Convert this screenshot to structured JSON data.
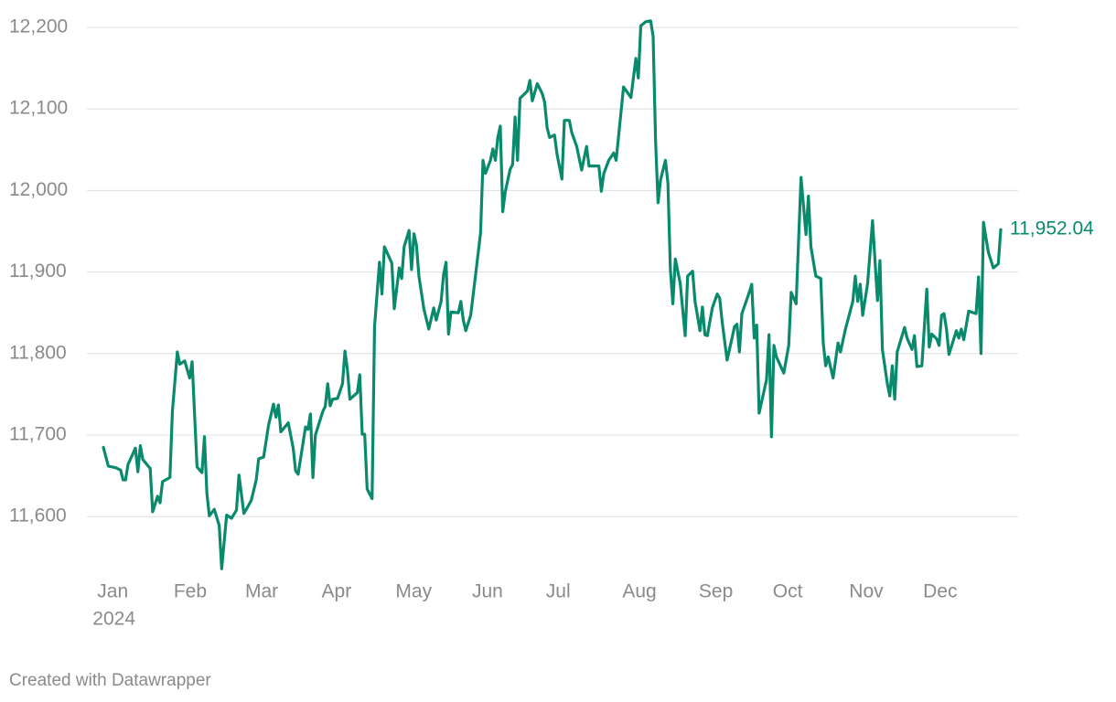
{
  "chart_data": {
    "type": "line",
    "x_year_label": "2024",
    "footer": "Created with Datawrapper",
    "last_value_label": "11,952.04",
    "xlim": [
      1,
      366
    ],
    "xticks": [
      {
        "value": 1,
        "label": "Jan"
      },
      {
        "value": 32,
        "label": "Feb"
      },
      {
        "value": 61,
        "label": "Mar"
      },
      {
        "value": 92,
        "label": "Apr"
      },
      {
        "value": 122,
        "label": "May"
      },
      {
        "value": 153,
        "label": "Jun"
      },
      {
        "value": 183,
        "label": "Jul"
      },
      {
        "value": 214,
        "label": "Aug"
      },
      {
        "value": 245,
        "label": "Sep"
      },
      {
        "value": 275,
        "label": "Oct"
      },
      {
        "value": 306,
        "label": "Nov"
      },
      {
        "value": 336,
        "label": "Dec"
      }
    ],
    "ylim": [
      11530,
      12210
    ],
    "yticks": [
      {
        "value": 11600,
        "label": "11,600"
      },
      {
        "value": 11700,
        "label": "11,700"
      },
      {
        "value": 11800,
        "label": "11,800"
      },
      {
        "value": 11900,
        "label": "11,900"
      },
      {
        "value": 12000,
        "label": "12,000"
      },
      {
        "value": 12100,
        "label": "12,100"
      },
      {
        "value": 12200,
        "label": "12,200"
      }
    ],
    "grid": true,
    "color": "#0a8a6c",
    "x": [
      2,
      4,
      7,
      9,
      10,
      11,
      12,
      15,
      16,
      17,
      18,
      21,
      22,
      24,
      25,
      26,
      29,
      30,
      32,
      33,
      35,
      37,
      38,
      40,
      42,
      43,
      44,
      45,
      47,
      49,
      50,
      52,
      54,
      56,
      57,
      59,
      60,
      62,
      64,
      65,
      67,
      69,
      71,
      72,
      73,
      74,
      77,
      79,
      80,
      81,
      84,
      85,
      86,
      87,
      88,
      91,
      92,
      93,
      94,
      95,
      97,
      99,
      100,
      101,
      102,
      105,
      106,
      107,
      108,
      109,
      111,
      112,
      114,
      115,
      116,
      119,
      120,
      122,
      123,
      124,
      126,
      127,
      128,
      129,
      130,
      132,
      134,
      136,
      137,
      139,
      140,
      141,
      142,
      143,
      146,
      147,
      148,
      149,
      151,
      153,
      155,
      156,
      157,
      159,
      160,
      161,
      162,
      163,
      164,
      165,
      167,
      168,
      169,
      170,
      171,
      174,
      175,
      176,
      178,
      180,
      181,
      182,
      183,
      185,
      186,
      188,
      189,
      191,
      192,
      194,
      196,
      198,
      199,
      201,
      203,
      204,
      205,
      207,
      209,
      210,
      213,
      216,
      218,
      219,
      220,
      222,
      224,
      225,
      226,
      227,
      228,
      230,
      231,
      232,
      233,
      234,
      236,
      238,
      239,
      241,
      242,
      244,
      245,
      246,
      247,
      249,
      251,
      252,
      253,
      255,
      257,
      258,
      259,
      260,
      261,
      264,
      265,
      266,
      267,
      268,
      271,
      272,
      273,
      274,
      275,
      278,
      280,
      281,
      283,
      285,
      287,
      288,
      289,
      291,
      293,
      294,
      295,
      296,
      298,
      300,
      301,
      303,
      306,
      307,
      308,
      309,
      310,
      312,
      314,
      316,
      317,
      318,
      320,
      321,
      322,
      323,
      324,
      327,
      328,
      330,
      331,
      332,
      334,
      336,
      337,
      338,
      340,
      341,
      342,
      343,
      344,
      345,
      348,
      349,
      350,
      351,
      353,
      356,
      357,
      358,
      359,
      360,
      361,
      363,
      365,
      366
    ],
    "values": [
      11685,
      11662,
      11660,
      11657,
      11645,
      11645,
      11664,
      11684,
      11655,
      11687,
      11670,
      11659,
      11606,
      11625,
      11617,
      11643,
      11648,
      11729,
      11802,
      11787,
      11791,
      11770,
      11790,
      11661,
      11654,
      11698,
      11628,
      11601,
      11609,
      11589,
      11536,
      11602,
      11598,
      11608,
      11651,
      11604,
      11609,
      11620,
      11645,
      11671,
      11673,
      11712,
      11738,
      11722,
      11737,
      11704,
      11715,
      11684,
      11656,
      11652,
      11710,
      11707,
      11726,
      11648,
      11700,
      11729,
      11735,
      11763,
      11736,
      11744,
      11745,
      11763,
      11803,
      11780,
      11744,
      11752,
      11774,
      11701,
      11701,
      11634,
      11622,
      11833,
      11912,
      11873,
      11931,
      11911,
      11855,
      11905,
      11892,
      11931,
      11951,
      11903,
      11947,
      11933,
      11895,
      11855,
      11830,
      11856,
      11841,
      11864,
      11897,
      11912,
      11824,
      11851,
      11850,
      11864,
      11841,
      11828,
      11847,
      11897,
      11948,
      12037,
      12021,
      12037,
      12051,
      12037,
      12065,
      12079,
      11974,
      11998,
      12026,
      12032,
      12090,
      12037,
      12113,
      12122,
      12135,
      12110,
      12131,
      12119,
      12108,
      12077,
      12065,
      12068,
      12045,
      12014,
      12086,
      12086,
      12071,
      12054,
      12025,
      12054,
      12030,
      12030,
      12030,
      11999,
      12021,
      12037,
      12046,
      12037,
      12127,
      12114,
      12162,
      12138,
      12202,
      12207,
      12208,
      12189,
      12060,
      11985,
      12013,
      12037,
      12009,
      11903,
      11861,
      11916,
      11886,
      11822,
      11895,
      11901,
      11864,
      11828,
      11857,
      11823,
      11822,
      11856,
      11873,
      11868,
      11839,
      11792,
      11819,
      11833,
      11836,
      11802,
      11849,
      11875,
      11885,
      11819,
      11835,
      11727,
      11768,
      11823,
      11698,
      11810,
      11796,
      11776,
      11810,
      11875,
      11861,
      12016,
      11946,
      11993,
      11931,
      11895,
      11892,
      11813,
      11785,
      11796,
      11770,
      11813,
      11802,
      11830,
      11864,
      11895,
      11864,
      11885,
      11847,
      11886,
      11963,
      11865,
      11914,
      11805,
      11763,
      11748,
      11785,
      11744,
      11802,
      11832,
      11819,
      11805,
      11822,
      11784,
      11785,
      11879,
      11808,
      11824,
      11818,
      11810,
      11847,
      11849,
      11830,
      11799,
      11828,
      11819,
      11830,
      11817,
      11852,
      11849,
      11894,
      11800,
      11961,
      11942,
      11924,
      11905,
      11910,
      11952.04
    ]
  }
}
